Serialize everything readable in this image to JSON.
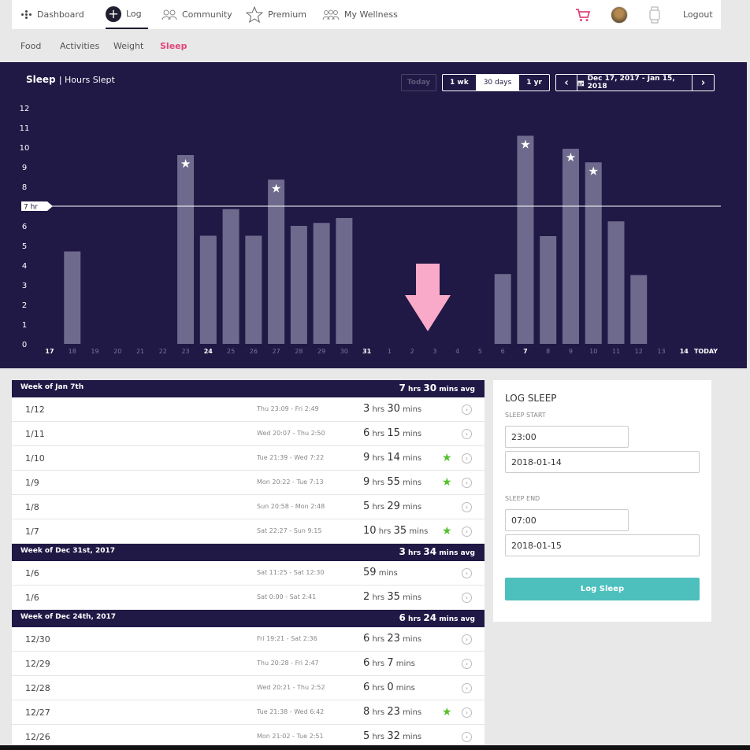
{
  "nav": {
    "items": [
      {
        "id": "dashboard",
        "label": "Dashboard"
      },
      {
        "id": "log",
        "label": "Log"
      },
      {
        "id": "community",
        "label": "Community"
      },
      {
        "id": "premium",
        "label": "Premium"
      },
      {
        "id": "wellness",
        "label": "My Wellness"
      }
    ],
    "logout": "Logout",
    "cart_icon": "cart-icon",
    "device_icon": "watch-icon",
    "accent": "#e0467a"
  },
  "subnav": [
    "Food",
    "Activities",
    "Weight",
    "Sleep"
  ],
  "chart": {
    "title": "Sleep",
    "subtitle": "| Hours Slept",
    "today_btn": "Today",
    "ranges": [
      "1 wk",
      "30 days",
      "1 yr"
    ],
    "selected_range": "30 days",
    "date_range": "Dec 17, 2017 - Jan 15, 2018",
    "prev": "‹",
    "next": "›",
    "goal_label": "7 hr"
  },
  "chart_data": {
    "type": "bar",
    "ylim": [
      0,
      12
    ],
    "yticks": [
      "0",
      "1",
      "2",
      "3",
      "4",
      "5",
      "6",
      "7",
      "8",
      "9",
      "10",
      "11",
      "12"
    ],
    "goal": 7,
    "categories": [
      "17",
      "18",
      "19",
      "20",
      "21",
      "22",
      "23",
      "24",
      "25",
      "26",
      "27",
      "28",
      "29",
      "30",
      "31",
      "1",
      "2",
      "3",
      "4",
      "5",
      "6",
      "7",
      "8",
      "9",
      "10",
      "11",
      "12",
      "13",
      "14",
      "TODAY"
    ],
    "bold_categories": [
      "17",
      "24",
      "31",
      "7",
      "14",
      "TODAY"
    ],
    "values": [
      0,
      4.7,
      0,
      0,
      0,
      0,
      9.6,
      5.5,
      6.85,
      5.5,
      8.35,
      6,
      6.15,
      6.4,
      0,
      0,
      0,
      0,
      0,
      0,
      3.55,
      10.58,
      5.48,
      9.92,
      9.23,
      6.23,
      3.5,
      0,
      0,
      0
    ],
    "starred": [
      "23",
      "27",
      "7",
      "9",
      "10"
    ],
    "bar_color": "#6e6a8d",
    "background": "#201845"
  },
  "weeks": [
    {
      "title": "Week of Jan 7th",
      "avg": {
        "h": "7",
        "m": "30"
      },
      "rows": [
        {
          "date": "1/12",
          "range": "Thu 23:09 - Fri 2:49",
          "h": "3",
          "m": "30",
          "star": false
        },
        {
          "date": "1/11",
          "range": "Wed 20:07 - Thu 2:50",
          "h": "6",
          "m": "15",
          "star": false
        },
        {
          "date": "1/10",
          "range": "Tue 21:39 - Wed 7:22",
          "h": "9",
          "m": "14",
          "star": true
        },
        {
          "date": "1/9",
          "range": "Mon 20:22 - Tue 7:13",
          "h": "9",
          "m": "55",
          "star": true
        },
        {
          "date": "1/8",
          "range": "Sun 20:58 - Mon 2:48",
          "h": "5",
          "m": "29",
          "star": false
        },
        {
          "date": "1/7",
          "range": "Sat 22:27 - Sun 9:15",
          "h": "10",
          "m": "35",
          "star": true
        }
      ]
    },
    {
      "title": "Week of Dec 31st, 2017",
      "avg": {
        "h": "3",
        "m": "34"
      },
      "rows": [
        {
          "date": "1/6",
          "range": "Sat 11:25 - Sat 12:30",
          "h": "",
          "m": "59",
          "star": false
        },
        {
          "date": "1/6",
          "range": "Sat 0:00 - Sat 2:41",
          "h": "2",
          "m": "35",
          "star": false
        }
      ]
    },
    {
      "title": "Week of Dec 24th, 2017",
      "avg": {
        "h": "6",
        "m": "24"
      },
      "rows": [
        {
          "date": "12/30",
          "range": "Fri 19:21 - Sat 2:36",
          "h": "6",
          "m": "23",
          "star": false
        },
        {
          "date": "12/29",
          "range": "Thu 20:28 - Fri 2:47",
          "h": "6",
          "m": "7",
          "star": false
        },
        {
          "date": "12/28",
          "range": "Wed 20:21 - Thu 2:52",
          "h": "6",
          "m": "0",
          "star": false
        },
        {
          "date": "12/27",
          "range": "Tue 21:38 - Wed 6:42",
          "h": "8",
          "m": "23",
          "star": true
        },
        {
          "date": "12/26",
          "range": "Mon 21:02 - Tue 2:51",
          "h": "5",
          "m": "32",
          "star": false
        }
      ]
    }
  ],
  "units": {
    "hrs": "hrs",
    "mins": "mins",
    "avg": "avg"
  },
  "log_sleep": {
    "title": "LOG SLEEP",
    "start_label": "SLEEP START",
    "start_time": "23:00",
    "start_date": "2018-01-14",
    "end_label": "SLEEP END",
    "end_time": "07:00",
    "end_date": "2018-01-15",
    "button": "Log Sleep",
    "button_color": "#4dbfbd"
  }
}
